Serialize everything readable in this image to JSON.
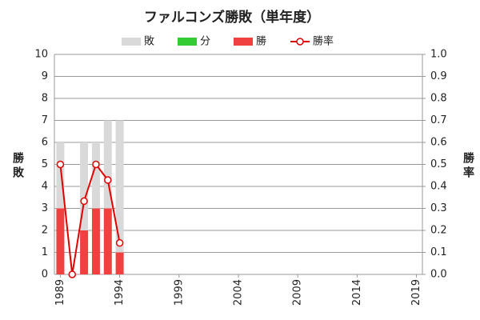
{
  "chart_data": {
    "type": "stacked-bar-line",
    "title": "ファルコンズ勝敗（単年度）",
    "x": [
      1989,
      1990,
      1991,
      1992,
      1993,
      1994
    ],
    "xlim": [
      1988.5,
      2019.5
    ],
    "xticks": [
      1989,
      1994,
      1999,
      2004,
      2009,
      2014,
      2019
    ],
    "ylabel": "勝敗",
    "y2label": "勝率",
    "ylim": [
      0,
      10
    ],
    "yticks": [
      0,
      1,
      2,
      3,
      4,
      5,
      6,
      7,
      8,
      9,
      10
    ],
    "y2lim": [
      0,
      1
    ],
    "y2ticks": [
      {
        "value": 0,
        "label": "0.0"
      },
      0.1,
      0.2,
      0.3,
      0.4,
      0.5,
      0.6,
      0.7,
      0.8,
      0.9,
      {
        "value": 1,
        "label": "1.0"
      }
    ],
    "grid": true,
    "series": [
      {
        "name": "敗",
        "color": "#d9d9d9",
        "values": [
          3,
          0,
          4,
          3,
          4,
          6
        ]
      },
      {
        "name": "分",
        "color": "#33cc33",
        "values": [
          0,
          0,
          0,
          0,
          0,
          0
        ]
      },
      {
        "name": "勝",
        "color": "#f04040",
        "values": [
          3,
          0,
          2,
          3,
          3,
          1
        ]
      },
      {
        "name": "勝率",
        "color": "#e00000",
        "axis": "y2",
        "values": [
          0.5,
          0,
          0.333,
          0.5,
          0.429,
          0.143
        ]
      }
    ]
  }
}
